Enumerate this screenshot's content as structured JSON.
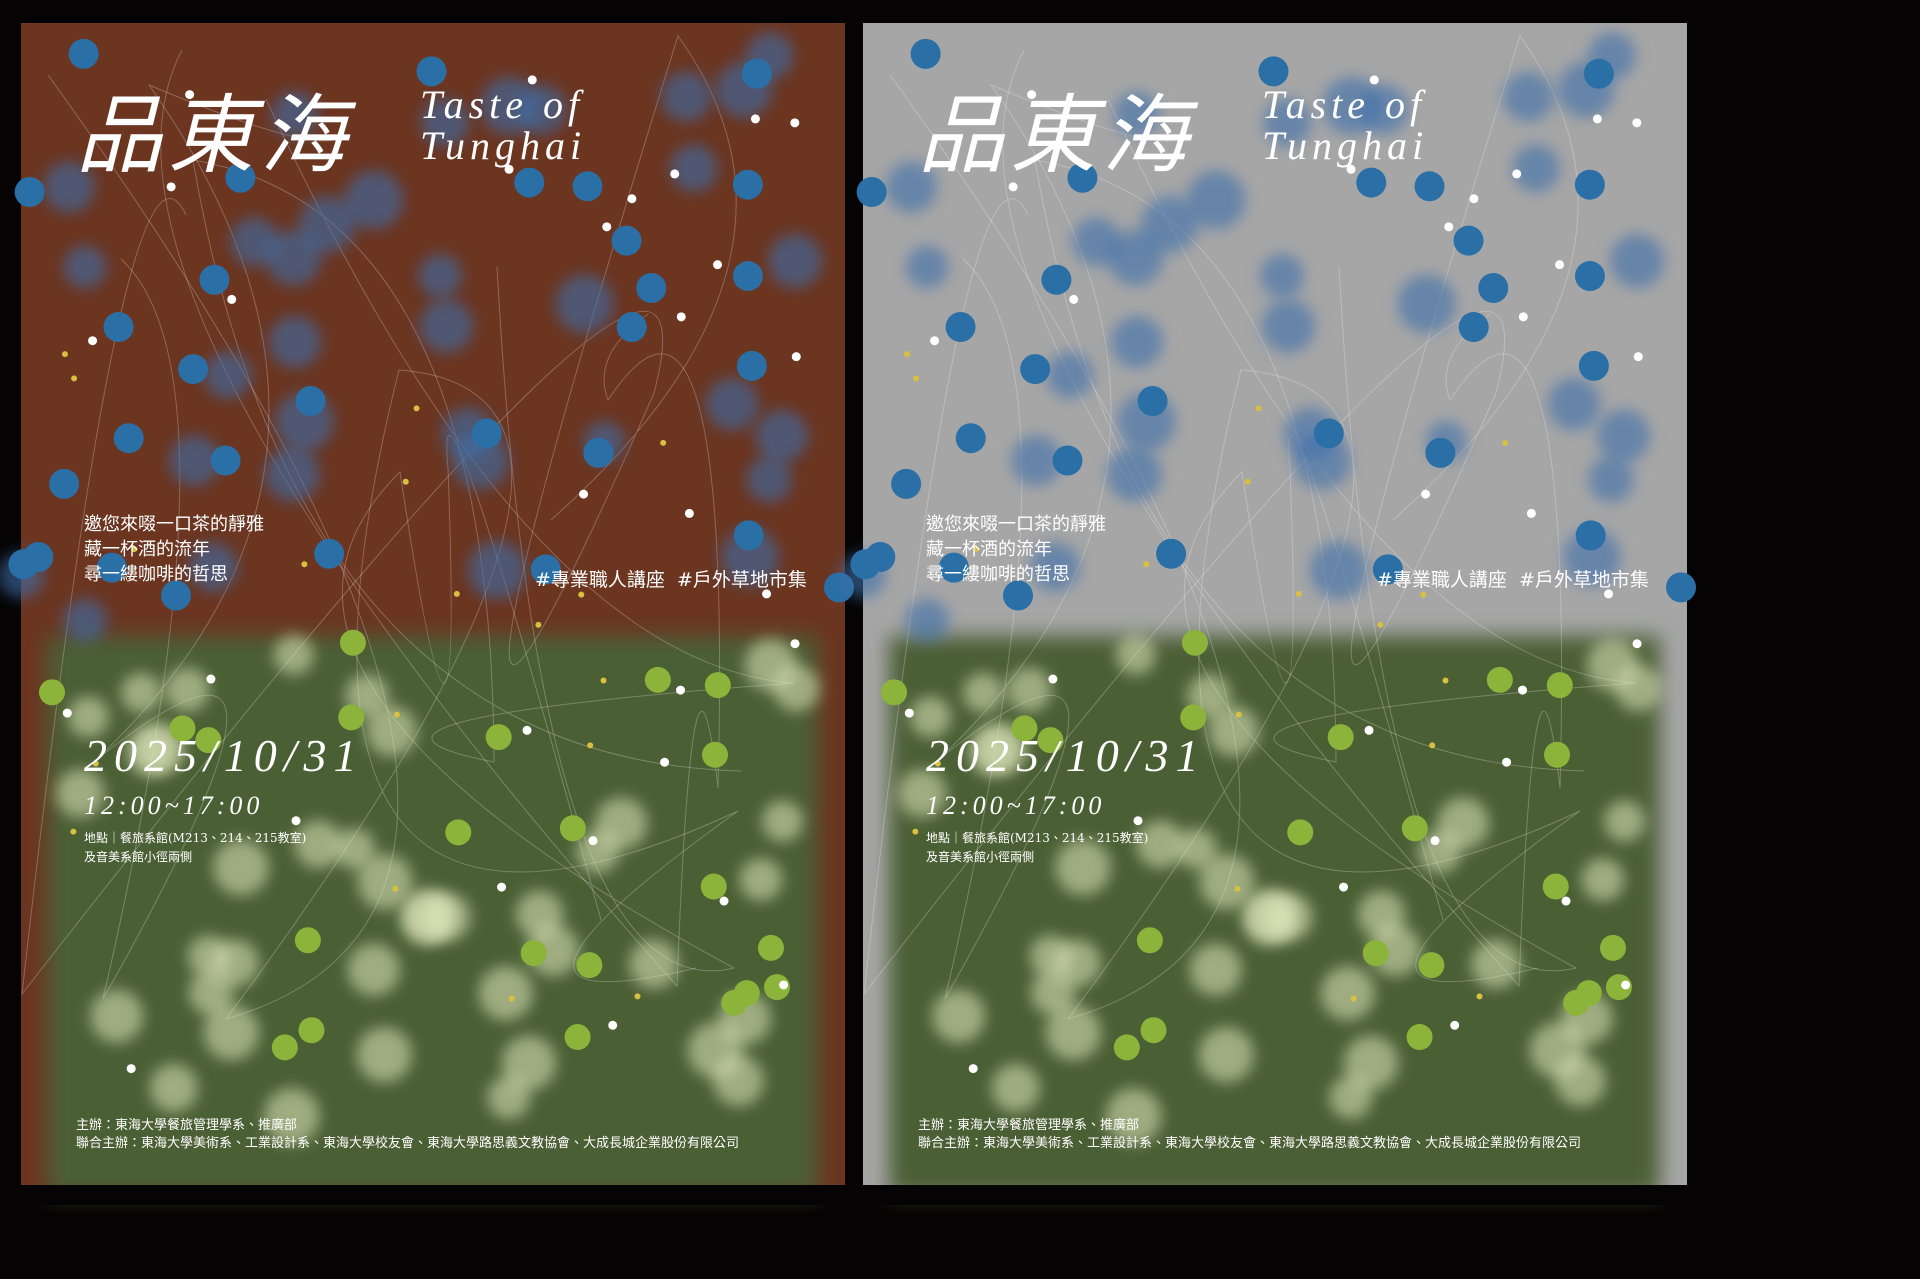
{
  "posters": [
    {
      "title": "品東海",
      "subtitle": [
        "Taste of",
        "Tunghai"
      ],
      "invitation": [
        "邀您來啜一口茶的靜雅",
        "藏一杯酒的流年",
        "尋一縷咖啡的哲思"
      ],
      "tags": [
        "#專業職人講座",
        "#戶外草地市集"
      ],
      "date": "2025/10/31",
      "time": "12:00~17:00",
      "venue": [
        "地點｜餐旅系館(M213、214、215教室)",
        "及音美系館小徑兩側"
      ],
      "organizers": [
        "主辦：東海大學餐旅管理學系、推廣部",
        "聯合主辦：東海大學美術系、工業設計系、東海大學校友會、東海大學路思義文教協會、大成長城企業股份有限公司"
      ]
    },
    {
      "title": "品東海",
      "subtitle": [
        "Taste of",
        "Tunghai"
      ],
      "invitation": [
        "邀您來啜一口茶的靜雅",
        "藏一杯酒的流年",
        "尋一縷咖啡的哲思"
      ],
      "tags": [
        "#專業職人講座",
        "#戶外草地市集"
      ],
      "date": "2025/10/31",
      "time": "12:00~17:00",
      "venue": [
        "地點｜餐旅系館(M213、214、215教室)",
        "及音美系館小徑兩側"
      ],
      "organizers": [
        "主辦：東海大學餐旅管理學系、推廣部",
        "聯合主辦：東海大學美術系、工業設計系、東海大學校友會、東海大學路思義文教協會、大成長城企業股份有限公司"
      ]
    }
  ]
}
